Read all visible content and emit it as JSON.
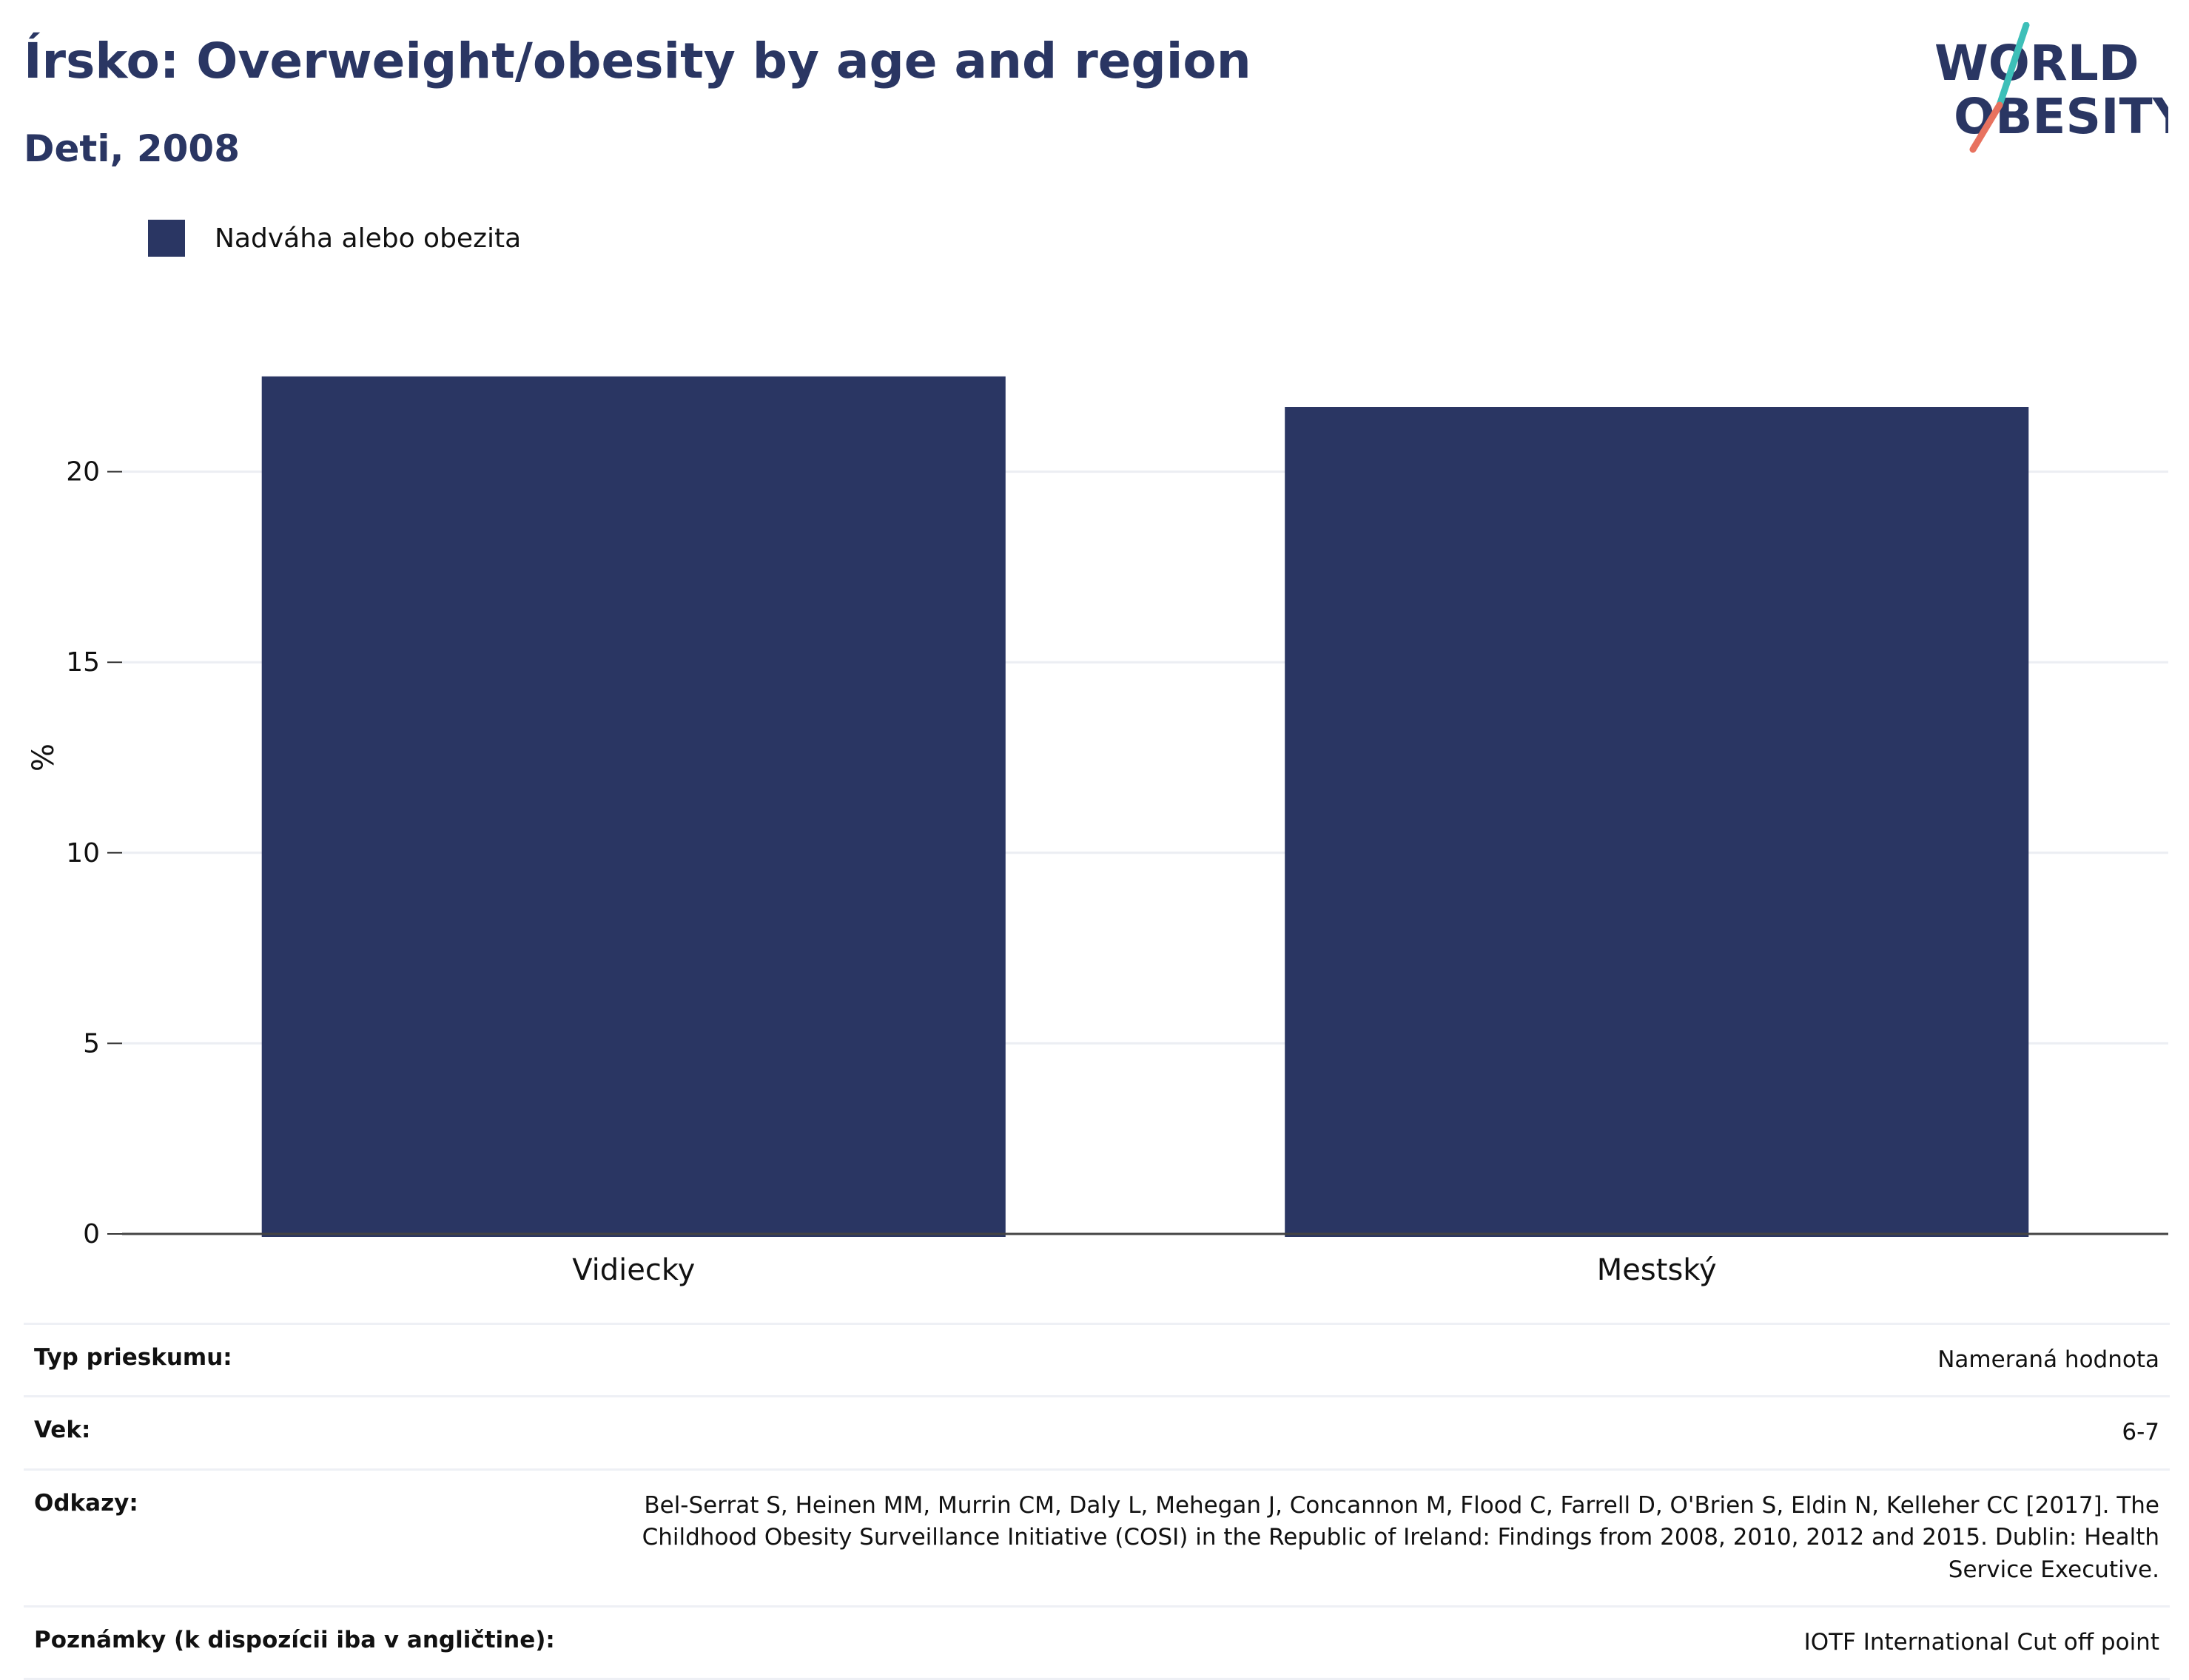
{
  "header": {
    "title": "Írsko: Overweight/obesity by age and region",
    "subtitle": "Deti, 2008"
  },
  "logo": {
    "line1": "WORLD",
    "line2": "OBESITY",
    "colors": {
      "text": "#2a3663",
      "teal": "#3dbfb8",
      "coral": "#e8725f"
    }
  },
  "legend": {
    "label": "Nadváha alebo obezita",
    "color": "#2a3663"
  },
  "chart_data": {
    "type": "bar",
    "categories": [
      "Vidiecky",
      "Mestský"
    ],
    "series": [
      {
        "name": "Nadváha alebo obezita",
        "values": [
          22.5,
          21.7
        ],
        "color": "#2a3663"
      }
    ],
    "title": "",
    "xlabel": "",
    "ylabel": "%",
    "ylim": [
      0,
      25
    ],
    "yticks": [
      0,
      5,
      10,
      15,
      20
    ],
    "grid": true,
    "legend_position": "top-left"
  },
  "details": [
    {
      "key": "Typ prieskumu:",
      "value": "Nameraná hodnota"
    },
    {
      "key": "Vek:",
      "value": "6-7"
    },
    {
      "key": "Odkazy:",
      "value": "Bel-Serrat S, Heinen MM, Murrin CM, Daly L, Mehegan J, Concannon M, Flood C, Farrell D, O'Brien S, Eldin N, Kelleher CC [2017]. The Childhood Obesity Surveillance Initiative (COSI) in the Republic of Ireland: Findings from 2008, 2010, 2012 and 2015. Dublin: Health Service Executive."
    },
    {
      "key": "Poznámky (k dispozícii iba v angličtine):",
      "value": "IOTF International Cut off point"
    }
  ]
}
